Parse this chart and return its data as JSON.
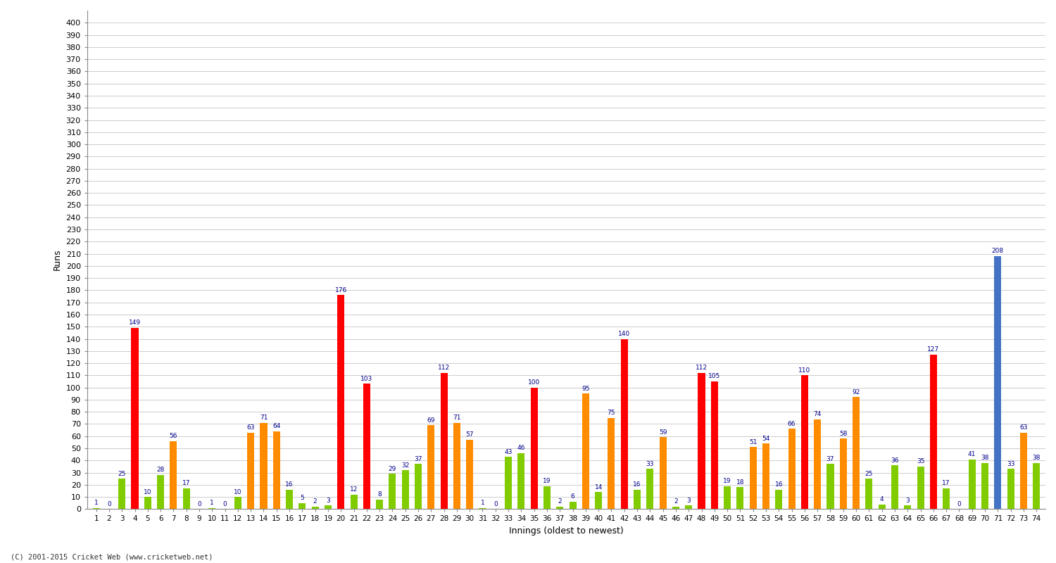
{
  "xlabel": "Innings (oldest to newest)",
  "ylabel": "Runs",
  "background_color": "#ffffff",
  "grid_color": "#cccccc",
  "ylim": [
    0,
    410
  ],
  "innings": [
    {
      "inn": 1,
      "score": 1,
      "color": "green"
    },
    {
      "inn": 2,
      "score": 0,
      "color": "green"
    },
    {
      "inn": 3,
      "score": 25,
      "color": "green"
    },
    {
      "inn": 4,
      "score": 149,
      "color": "red"
    },
    {
      "inn": 5,
      "score": 10,
      "color": "green"
    },
    {
      "inn": 6,
      "score": 28,
      "color": "green"
    },
    {
      "inn": 7,
      "score": 56,
      "color": "orange"
    },
    {
      "inn": 8,
      "score": 17,
      "color": "green"
    },
    {
      "inn": 9,
      "score": 0,
      "color": "green"
    },
    {
      "inn": 10,
      "score": 1,
      "color": "green"
    },
    {
      "inn": 11,
      "score": 0,
      "color": "green"
    },
    {
      "inn": 12,
      "score": 10,
      "color": "green"
    },
    {
      "inn": 13,
      "score": 63,
      "color": "orange"
    },
    {
      "inn": 14,
      "score": 71,
      "color": "orange"
    },
    {
      "inn": 15,
      "score": 64,
      "color": "orange"
    },
    {
      "inn": 16,
      "score": 16,
      "color": "green"
    },
    {
      "inn": 17,
      "score": 5,
      "color": "green"
    },
    {
      "inn": 18,
      "score": 2,
      "color": "green"
    },
    {
      "inn": 19,
      "score": 3,
      "color": "green"
    },
    {
      "inn": 20,
      "score": 176,
      "color": "red"
    },
    {
      "inn": 21,
      "score": 12,
      "color": "green"
    },
    {
      "inn": 22,
      "score": 103,
      "color": "red"
    },
    {
      "inn": 23,
      "score": 8,
      "color": "green"
    },
    {
      "inn": 24,
      "score": 29,
      "color": "green"
    },
    {
      "inn": 25,
      "score": 32,
      "color": "green"
    },
    {
      "inn": 26,
      "score": 37,
      "color": "green"
    },
    {
      "inn": 27,
      "score": 69,
      "color": "orange"
    },
    {
      "inn": 28,
      "score": 112,
      "color": "red"
    },
    {
      "inn": 29,
      "score": 71,
      "color": "orange"
    },
    {
      "inn": 30,
      "score": 57,
      "color": "orange"
    },
    {
      "inn": 31,
      "score": 1,
      "color": "green"
    },
    {
      "inn": 32,
      "score": 0,
      "color": "green"
    },
    {
      "inn": 33,
      "score": 43,
      "color": "green"
    },
    {
      "inn": 34,
      "score": 46,
      "color": "green"
    },
    {
      "inn": 35,
      "score": 100,
      "color": "red"
    },
    {
      "inn": 36,
      "score": 19,
      "color": "green"
    },
    {
      "inn": 37,
      "score": 2,
      "color": "green"
    },
    {
      "inn": 38,
      "score": 6,
      "color": "green"
    },
    {
      "inn": 39,
      "score": 95,
      "color": "orange"
    },
    {
      "inn": 40,
      "score": 14,
      "color": "green"
    },
    {
      "inn": 41,
      "score": 75,
      "color": "orange"
    },
    {
      "inn": 42,
      "score": 140,
      "color": "red"
    },
    {
      "inn": 43,
      "score": 16,
      "color": "green"
    },
    {
      "inn": 44,
      "score": 33,
      "color": "green"
    },
    {
      "inn": 45,
      "score": 59,
      "color": "orange"
    },
    {
      "inn": 46,
      "score": 2,
      "color": "green"
    },
    {
      "inn": 47,
      "score": 3,
      "color": "green"
    },
    {
      "inn": 48,
      "score": 112,
      "color": "red"
    },
    {
      "inn": 49,
      "score": 105,
      "color": "red"
    },
    {
      "inn": 50,
      "score": 19,
      "color": "green"
    },
    {
      "inn": 51,
      "score": 18,
      "color": "green"
    },
    {
      "inn": 52,
      "score": 51,
      "color": "orange"
    },
    {
      "inn": 53,
      "score": 54,
      "color": "orange"
    },
    {
      "inn": 54,
      "score": 16,
      "color": "green"
    },
    {
      "inn": 55,
      "score": 66,
      "color": "orange"
    },
    {
      "inn": 56,
      "score": 110,
      "color": "red"
    },
    {
      "inn": 57,
      "score": 74,
      "color": "orange"
    },
    {
      "inn": 58,
      "score": 37,
      "color": "green"
    },
    {
      "inn": 59,
      "score": 58,
      "color": "orange"
    },
    {
      "inn": 60,
      "score": 92,
      "color": "orange"
    },
    {
      "inn": 61,
      "score": 25,
      "color": "green"
    },
    {
      "inn": 62,
      "score": 4,
      "color": "green"
    },
    {
      "inn": 63,
      "score": 36,
      "color": "green"
    },
    {
      "inn": 64,
      "score": 3,
      "color": "green"
    },
    {
      "inn": 65,
      "score": 35,
      "color": "green"
    },
    {
      "inn": 66,
      "score": 127,
      "color": "red"
    },
    {
      "inn": 67,
      "score": 17,
      "color": "green"
    },
    {
      "inn": 68,
      "score": 0,
      "color": "green"
    },
    {
      "inn": 69,
      "score": 41,
      "color": "green"
    },
    {
      "inn": 70,
      "score": 38,
      "color": "green"
    },
    {
      "inn": 71,
      "score": 208,
      "color": "blue"
    },
    {
      "inn": 72,
      "score": 33,
      "color": "green"
    },
    {
      "inn": 73,
      "score": 63,
      "color": "orange"
    },
    {
      "inn": 74,
      "score": 38,
      "color": "green"
    }
  ],
  "color_map": {
    "red": "#ff0000",
    "orange": "#ff8c00",
    "green": "#80cc00",
    "blue": "#4472c4"
  },
  "label_color": "#00008B",
  "footer": "(C) 2001-2015 Cricket Web (www.cricketweb.net)"
}
